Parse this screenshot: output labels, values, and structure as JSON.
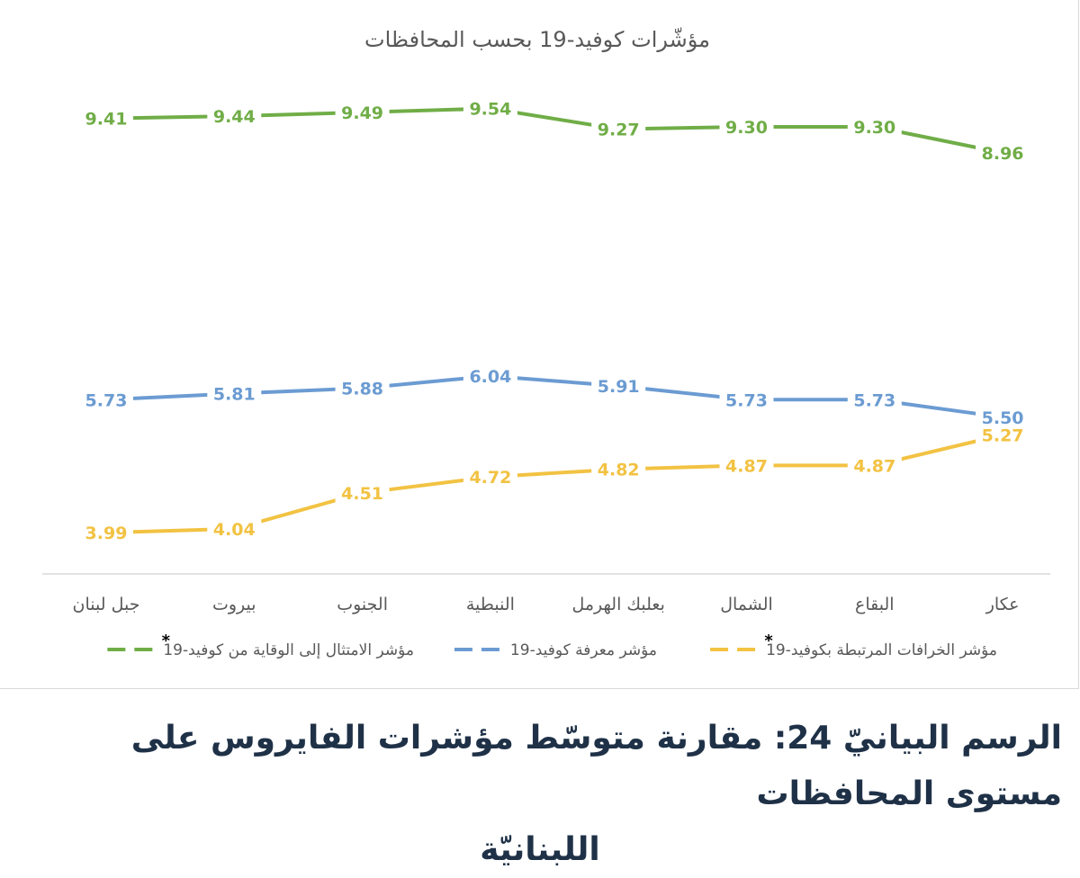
{
  "chart_data": {
    "type": "line",
    "title": "مؤشّرات كوفيد-19 بحسب المحافظات",
    "categories": [
      "جبل لبنان",
      "بيروت",
      "الجنوب",
      "النبطية",
      "بعلبك الهرمل",
      "الشمال",
      "البقاع",
      "عكار"
    ],
    "series": [
      {
        "name": "مؤشر الامتثال إلى الوقاية من كوفيد-19",
        "legend_mark": "*",
        "color": "#70ad47",
        "values": [
          9.41,
          9.44,
          9.49,
          9.54,
          9.27,
          9.3,
          9.3,
          8.96
        ],
        "labels": [
          "9.41",
          "9.44",
          "9.49",
          "9.54",
          "9.27",
          "9.30",
          "9.30",
          "8.96"
        ]
      },
      {
        "name": "مؤشر معرفة كوفيد-19",
        "legend_mark": "",
        "color": "#6b9bd2",
        "values": [
          5.73,
          5.81,
          5.88,
          6.04,
          5.91,
          5.73,
          5.73,
          5.5
        ],
        "labels": [
          "5.73",
          "5.81",
          "5.88",
          "6.04",
          "5.91",
          "5.73",
          "5.73",
          "5.50"
        ]
      },
      {
        "name": "مؤشر الخرافات المرتبطة بكوفيد-19",
        "legend_mark": "*",
        "color": "#f2c242",
        "values": [
          3.99,
          4.04,
          4.51,
          4.72,
          4.82,
          4.87,
          4.87,
          5.27
        ],
        "labels": [
          "3.99",
          "4.04",
          "4.51",
          "4.72",
          "4.82",
          "4.87",
          "4.87",
          "5.27"
        ]
      }
    ],
    "ylim": [
      3.45,
      9.9
    ],
    "grid": false,
    "legend_position": "bottom"
  },
  "caption": {
    "line1": "الرسم البيانيّ 24: مقارنة متوسّط مؤشرات الفايروس على مستوى المحافظات",
    "line2": "اللبنانيّة"
  }
}
